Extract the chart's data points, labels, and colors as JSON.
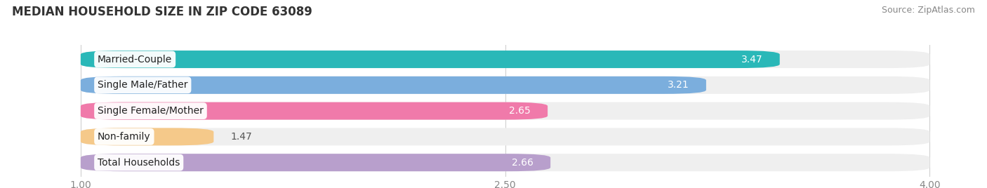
{
  "title": "MEDIAN HOUSEHOLD SIZE IN ZIP CODE 63089",
  "source": "Source: ZipAtlas.com",
  "categories": [
    "Married-Couple",
    "Single Male/Father",
    "Single Female/Mother",
    "Non-family",
    "Total Households"
  ],
  "values": [
    3.47,
    3.21,
    2.65,
    1.47,
    2.66
  ],
  "bar_colors": [
    "#2ab8b8",
    "#7baedd",
    "#f07aaa",
    "#f5c98a",
    "#b89fcc"
  ],
  "bar_bg_color": "#efefef",
  "xlim_left": 0.75,
  "xlim_right": 4.15,
  "xdata_min": 1.0,
  "xdata_max": 4.0,
  "xticks": [
    1.0,
    2.5,
    4.0
  ],
  "fig_bg": "#ffffff",
  "bar_height": 0.68,
  "title_fontsize": 12,
  "source_fontsize": 9,
  "label_fontsize": 10,
  "value_fontsize": 10,
  "tick_fontsize": 10
}
